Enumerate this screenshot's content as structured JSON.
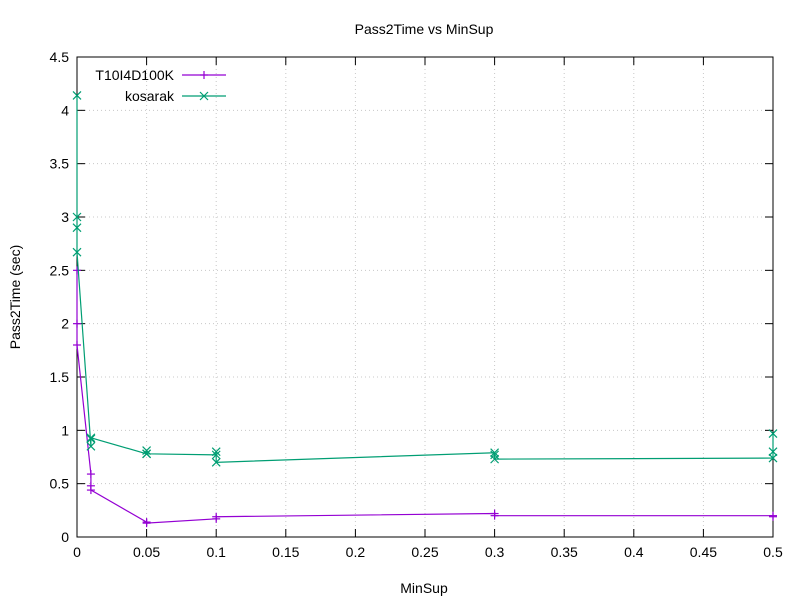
{
  "chart_data": {
    "type": "line",
    "title": "Pass2Time vs MinSup",
    "xlabel": "MinSup",
    "ylabel": "Pass2Time (sec)",
    "xlim": [
      0,
      0.5
    ],
    "ylim": [
      0,
      4.5
    ],
    "x_ticks": [
      0,
      0.05,
      0.1,
      0.15,
      0.2,
      0.25,
      0.3,
      0.35,
      0.4,
      0.45,
      0.5
    ],
    "x_tick_labels": [
      "0",
      "0.05",
      "0.1",
      "0.15",
      "0.2",
      "0.25",
      "0.3",
      "0.35",
      "0.4",
      "0.45",
      "0.5"
    ],
    "y_ticks": [
      0,
      0.5,
      1,
      1.5,
      2,
      2.5,
      3,
      3.5,
      4,
      4.5
    ],
    "y_tick_labels": [
      "0",
      "0.5",
      "1",
      "1.5",
      "2",
      "2.5",
      "3",
      "3.5",
      "4",
      "4.5"
    ],
    "grid": true,
    "legend_position": "top-left",
    "series": [
      {
        "name": "T10I4D100K",
        "color": "#9400d3",
        "marker": "plus",
        "points": [
          {
            "x": 0.0,
            "y": 2.5
          },
          {
            "x": 0.0,
            "y": 2.0
          },
          {
            "x": 0.0,
            "y": 1.8
          },
          {
            "x": 0.01,
            "y": 0.59
          },
          {
            "x": 0.01,
            "y": 0.48
          },
          {
            "x": 0.01,
            "y": 0.44
          },
          {
            "x": 0.05,
            "y": 0.14
          },
          {
            "x": 0.05,
            "y": 0.13
          },
          {
            "x": 0.1,
            "y": 0.17
          },
          {
            "x": 0.1,
            "y": 0.19
          },
          {
            "x": 0.3,
            "y": 0.22
          },
          {
            "x": 0.3,
            "y": 0.2
          },
          {
            "x": 0.5,
            "y": 0.2
          },
          {
            "x": 0.5,
            "y": 0.19
          }
        ]
      },
      {
        "name": "kosarak",
        "color": "#009e73",
        "marker": "cross",
        "points": [
          {
            "x": 0.0,
            "y": 4.14
          },
          {
            "x": 0.0,
            "y": 3.0
          },
          {
            "x": 0.0,
            "y": 2.9
          },
          {
            "x": 0.0,
            "y": 2.67
          },
          {
            "x": 0.01,
            "y": 0.85
          },
          {
            "x": 0.01,
            "y": 0.92
          },
          {
            "x": 0.01,
            "y": 0.93
          },
          {
            "x": 0.05,
            "y": 0.78
          },
          {
            "x": 0.05,
            "y": 0.81
          },
          {
            "x": 0.05,
            "y": 0.78
          },
          {
            "x": 0.1,
            "y": 0.77
          },
          {
            "x": 0.1,
            "y": 0.8
          },
          {
            "x": 0.1,
            "y": 0.7
          },
          {
            "x": 0.3,
            "y": 0.79
          },
          {
            "x": 0.3,
            "y": 0.77
          },
          {
            "x": 0.3,
            "y": 0.73
          },
          {
            "x": 0.5,
            "y": 0.74
          },
          {
            "x": 0.5,
            "y": 0.8
          },
          {
            "x": 0.5,
            "y": 0.97
          }
        ]
      }
    ]
  }
}
